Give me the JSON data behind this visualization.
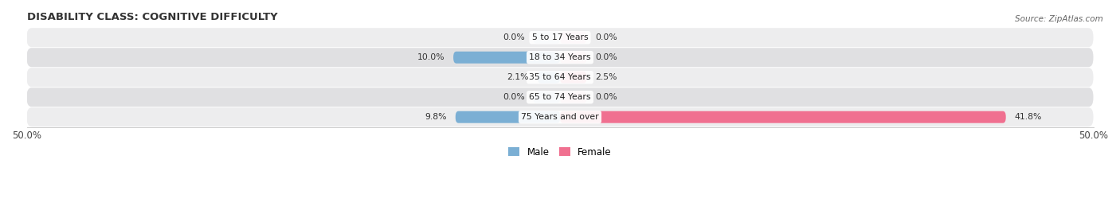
{
  "title": "DISABILITY CLASS: COGNITIVE DIFFICULTY",
  "source": "Source: ZipAtlas.com",
  "categories": [
    "5 to 17 Years",
    "18 to 34 Years",
    "35 to 64 Years",
    "65 to 74 Years",
    "75 Years and over"
  ],
  "male_values": [
    0.0,
    10.0,
    2.1,
    0.0,
    9.8
  ],
  "female_values": [
    0.0,
    0.0,
    2.5,
    0.0,
    41.8
  ],
  "male_color": "#7bafd4",
  "female_color": "#f07090",
  "row_bg_even": "#ededee",
  "row_bg_odd": "#e0e0e2",
  "max_val": 50.0,
  "legend_male": "Male",
  "legend_female": "Female",
  "title_fontsize": 9.5,
  "label_fontsize": 7.8,
  "value_fontsize": 7.8,
  "axis_fontsize": 8.5
}
